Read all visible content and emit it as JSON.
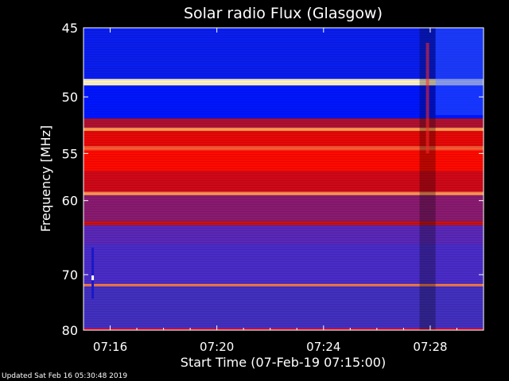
{
  "chart_data": {
    "type": "heatmap",
    "title": "Solar radio Flux (Glasgow)",
    "xlabel": "Start Time (07-Feb-19 07:15:00)",
    "ylabel": "Frequency [MHz]",
    "x_ticks": [
      "07:16",
      "07:20",
      "07:24",
      "07:28"
    ],
    "x_tick_minutes": [
      1,
      5,
      9,
      13
    ],
    "xlim_minutes": [
      0,
      15
    ],
    "y_ticks": [
      45,
      50,
      55,
      60,
      70,
      80
    ],
    "ylim_mhz": [
      45,
      80
    ],
    "y_scale": "reciprocal",
    "colormap": [
      "#2020a0",
      "#4a2cc8",
      "#0000ff",
      "#8c1d5a",
      "#ff0000",
      "#ff7a20",
      "#ffff90"
    ],
    "frequency_bands_mhz": [
      {
        "from": 45.0,
        "to": 48.6,
        "level": "#0a1ef0"
      },
      {
        "from": 48.6,
        "to": 49.1,
        "level": "#fff3c8"
      },
      {
        "from": 49.1,
        "to": 51.8,
        "level": "#0016ff"
      },
      {
        "from": 51.8,
        "to": 52.6,
        "level": "#b01030"
      },
      {
        "from": 52.6,
        "to": 52.9,
        "level": "#ff9a50"
      },
      {
        "from": 52.9,
        "to": 54.3,
        "level": "#e80808"
      },
      {
        "from": 54.3,
        "to": 54.7,
        "level": "#ff5a30"
      },
      {
        "from": 54.7,
        "to": 56.8,
        "level": "#ff0a00"
      },
      {
        "from": 56.8,
        "to": 59.0,
        "level": "#d00818"
      },
      {
        "from": 59.0,
        "to": 59.4,
        "level": "#ff9050"
      },
      {
        "from": 59.4,
        "to": 62.5,
        "level": "#8a1a70"
      },
      {
        "from": 62.5,
        "to": 63.0,
        "level": "#cc1010"
      },
      {
        "from": 63.0,
        "to": 65.5,
        "level": "#5a28b8"
      },
      {
        "from": 65.5,
        "to": 71.5,
        "level": "#4a2cc8"
      },
      {
        "from": 71.5,
        "to": 71.9,
        "level": "#ff8040"
      },
      {
        "from": 71.9,
        "to": 80.0,
        "level": "#4230c0"
      }
    ],
    "burst_minutes": [
      12.6,
      13.2
    ],
    "footer": "Updated Sat Feb 16 05:30:48 2019"
  }
}
